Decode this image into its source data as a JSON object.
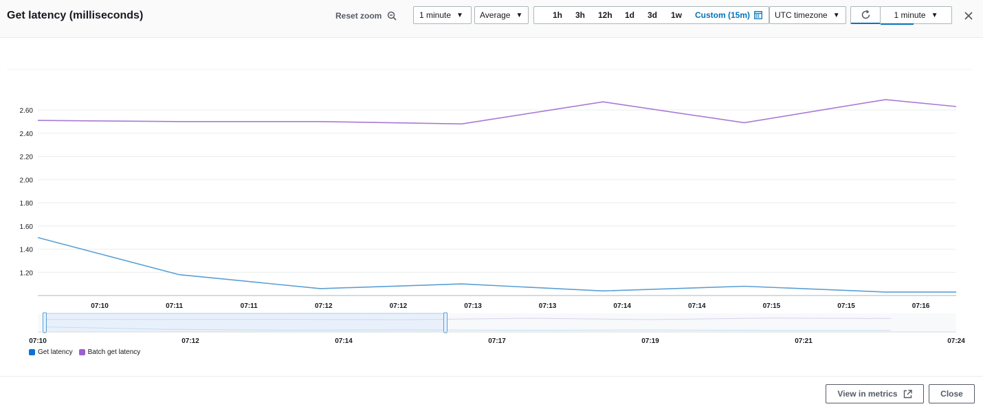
{
  "header": {
    "title": "Get latency (milliseconds)",
    "reset_zoom_label": "Reset zoom",
    "period_select": "1 minute",
    "statistic_select": "Average",
    "time_ranges": [
      "1h",
      "3h",
      "12h",
      "1d",
      "3d",
      "1w"
    ],
    "custom_range": "Custom (15m)",
    "timezone_select": "UTC timezone",
    "refresh_interval_select": "1 minute"
  },
  "footer": {
    "view_metrics_label": "View in metrics",
    "close_label": "Close"
  },
  "colors": {
    "get_latency": "#5a9fd4",
    "batch_get_latency": "#a878d4",
    "legend_get": "#0972d3",
    "legend_batch": "#9b5fd0",
    "accent": "#0073bb"
  },
  "icons": {
    "reset_zoom": "zoom-out-icon",
    "calendar": "calendar-icon",
    "refresh": "refresh-icon",
    "close": "close-icon",
    "external": "external-link-icon"
  },
  "chart_data": {
    "type": "line",
    "x_tick_labels": [
      "07:10",
      "07:11",
      "07:11",
      "07:12",
      "07:12",
      "07:13",
      "07:13",
      "07:14",
      "07:14",
      "07:15",
      "07:15",
      "07:16"
    ],
    "y_ticks": [
      "1.20",
      "1.40",
      "1.60",
      "1.80",
      "2.00",
      "2.20",
      "2.40",
      "2.60"
    ],
    "ylim": [
      1.0,
      2.95
    ],
    "x": [
      "07:09:45",
      "07:10:45",
      "07:11:45",
      "07:12:45",
      "07:13:45",
      "07:14:45",
      "07:15:45",
      "07:16:15"
    ],
    "series": [
      {
        "name": "Get latency",
        "values": [
          1.5,
          1.18,
          1.06,
          1.1,
          1.04,
          1.08,
          1.03,
          1.03
        ]
      },
      {
        "name": "Batch get latency",
        "values": [
          2.51,
          2.5,
          2.5,
          2.48,
          2.67,
          2.49,
          2.69,
          2.63
        ]
      }
    ],
    "navigator": {
      "tick_labels": [
        "07:10",
        "07:12",
        "07:14",
        "07:17",
        "07:19",
        "07:21",
        "07:24"
      ],
      "selection": [
        "07:10",
        "07:16"
      ]
    },
    "legend": [
      "Get latency",
      "Batch get latency"
    ],
    "grid": true
  }
}
